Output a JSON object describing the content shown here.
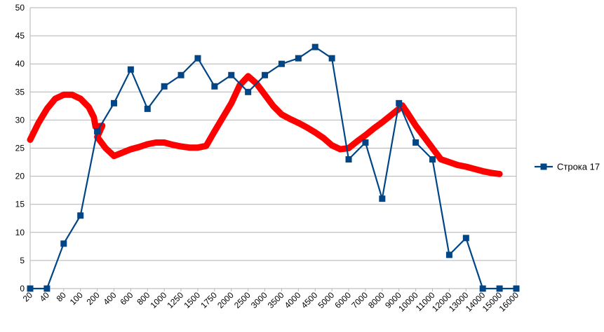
{
  "chart_data": {
    "type": "line",
    "categories": [
      "20",
      "40",
      "80",
      "100",
      "200",
      "400",
      "600",
      "800",
      "1000",
      "1250",
      "1500",
      "1750",
      "2000",
      "2500",
      "3000",
      "3500",
      "4000",
      "4500",
      "5000",
      "6000",
      "7000",
      "8000",
      "9000",
      "10000",
      "11000",
      "12000",
      "13000",
      "14000",
      "15000",
      "16000"
    ],
    "series": [
      {
        "name": "Строка 17",
        "color": "#004586",
        "marker": "square",
        "values": [
          0,
          0,
          8,
          13,
          28,
          33,
          39,
          32,
          36,
          38,
          41,
          36,
          38,
          35,
          38,
          40,
          41,
          43,
          41,
          23,
          26,
          16,
          33,
          26,
          23,
          6,
          9,
          0,
          0,
          0
        ]
      },
      {
        "color": "#ff0000",
        "style": "hand-drawn stroke",
        "points": [
          [
            0,
            26.5
          ],
          [
            0.5,
            29.5
          ],
          [
            1,
            32
          ],
          [
            1.5,
            33.8
          ],
          [
            2,
            34.5
          ],
          [
            2.5,
            34.5
          ],
          [
            3,
            33.8
          ],
          [
            3.5,
            32.3
          ],
          [
            3.8,
            30.5
          ],
          [
            3.9,
            28.8
          ],
          [
            4.3,
            29
          ],
          [
            4,
            27
          ],
          [
            4.5,
            25
          ],
          [
            5,
            23.6
          ],
          [
            5.5,
            24.2
          ],
          [
            6,
            24.8
          ],
          [
            6.5,
            25.2
          ],
          [
            7,
            25.7
          ],
          [
            7.5,
            26
          ],
          [
            8,
            26
          ],
          [
            8.5,
            25.6
          ],
          [
            9,
            25.3
          ],
          [
            9.5,
            25.1
          ],
          [
            10,
            25.1
          ],
          [
            10.5,
            25.4
          ],
          [
            11,
            28
          ],
          [
            11.5,
            30.5
          ],
          [
            12,
            33
          ],
          [
            12.5,
            36.2
          ],
          [
            13,
            37.8
          ],
          [
            13.5,
            36.5
          ],
          [
            14,
            34.5
          ],
          [
            14.5,
            32.5
          ],
          [
            15,
            31
          ],
          [
            15.5,
            30.2
          ],
          [
            16,
            29.5
          ],
          [
            16.5,
            28.7
          ],
          [
            17,
            27.8
          ],
          [
            17.5,
            26.8
          ],
          [
            18,
            25.5
          ],
          [
            18.5,
            24.8
          ],
          [
            19,
            25
          ],
          [
            19.5,
            26.2
          ],
          [
            20,
            27.3
          ],
          [
            20.5,
            28.5
          ],
          [
            21,
            29.6
          ],
          [
            21.5,
            30.8
          ],
          [
            22,
            32
          ],
          [
            22.2,
            32.6
          ],
          [
            22.5,
            31.3
          ],
          [
            23,
            29
          ],
          [
            23.5,
            27
          ],
          [
            24,
            25
          ],
          [
            24.5,
            23
          ],
          [
            25,
            22.5
          ],
          [
            25.5,
            22
          ],
          [
            26,
            21.7
          ],
          [
            26.5,
            21.3
          ],
          [
            27,
            20.9
          ],
          [
            27.5,
            20.6
          ],
          [
            28,
            20.4
          ]
        ]
      }
    ],
    "ylim": [
      0,
      50
    ],
    "yticks": [
      0,
      5,
      10,
      15,
      20,
      25,
      30,
      35,
      40,
      45,
      50
    ],
    "grid": "horizontal",
    "legend": "right"
  }
}
